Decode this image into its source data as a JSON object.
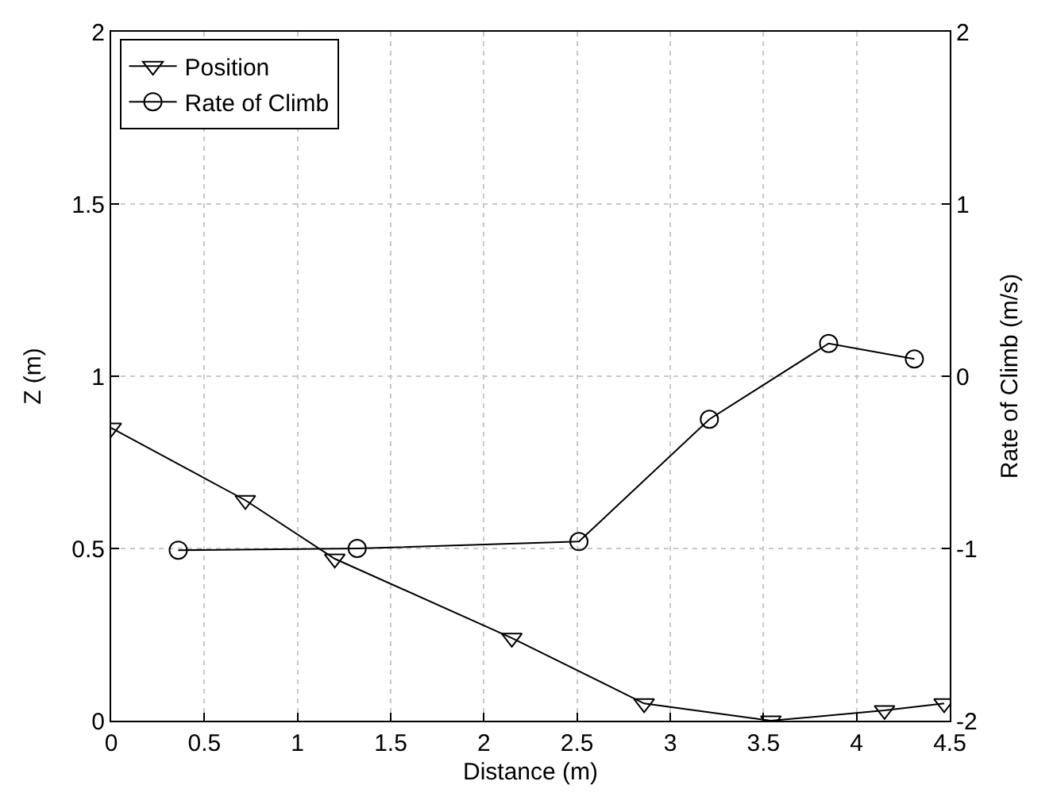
{
  "chart_data": {
    "type": "line",
    "xlabel": "Distance (m)",
    "ylabel": "Z (m)",
    "y2label": "Rate of Climb (m/s)",
    "xlim": [
      0,
      4.5
    ],
    "xticks": [
      0,
      0.5,
      1,
      1.5,
      2,
      2.5,
      3,
      3.5,
      4,
      4.5
    ],
    "ylim": [
      0,
      2
    ],
    "yticks": [
      0,
      0.5,
      1,
      1.5,
      2
    ],
    "y2lim": [
      -2,
      2
    ],
    "y2ticks": [
      -2,
      -1,
      0,
      1,
      2
    ],
    "grid": true,
    "legend": "top left",
    "series": [
      {
        "name": "Position",
        "color": "#000000",
        "marker": "triangle",
        "x": [
          0,
          0.72,
          1.2,
          2.15,
          2.86,
          3.54,
          4.15,
          4.47
        ],
        "values": [
          0.85,
          0.64,
          0.47,
          0.24,
          0.05,
          0.0,
          0.03,
          0.05
        ]
      },
      {
        "name": "Rate of Climb",
        "color": "#000000",
        "marker": "circle",
        "axis": "y2",
        "x": [
          0.36,
          1.32,
          2.51,
          3.21,
          3.85,
          4.31
        ],
        "values": [
          -1.01,
          -1.0,
          -0.96,
          -0.25,
          0.19,
          0.1
        ]
      }
    ]
  }
}
